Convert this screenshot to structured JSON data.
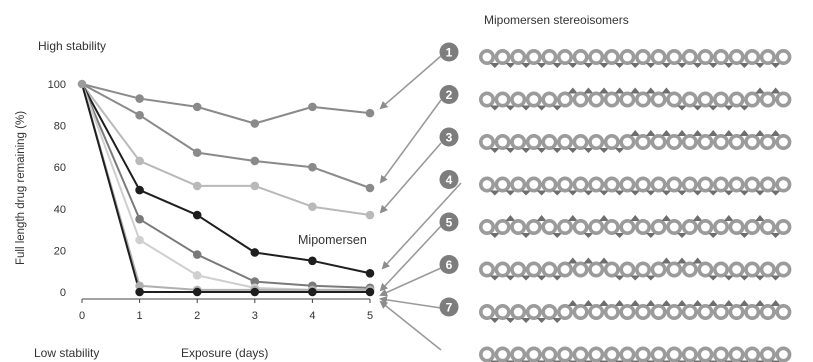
{
  "chart_data": {
    "type": "line",
    "title": "",
    "xlabel": "Exposure (days)",
    "ylabel": "Full length drug remaining (%)",
    "xlim": [
      0,
      5
    ],
    "ylim": [
      0,
      100
    ],
    "x_ticks": [
      "0",
      "1",
      "2",
      "3",
      "4",
      "5"
    ],
    "y_ticks": [
      "0",
      "20",
      "40",
      "60",
      "80",
      "100"
    ],
    "grid": false,
    "legend": "none",
    "annotations": {
      "top": "High stability",
      "bottom": "Low stability",
      "highlight": "Mipomersen"
    },
    "x": [
      0,
      1,
      2,
      3,
      4,
      5
    ],
    "series": [
      {
        "values": [
          100,
          93,
          89,
          81,
          89,
          86
        ],
        "color": "#8a8a8a"
      },
      {
        "values": [
          100,
          85,
          67,
          63,
          60,
          50
        ],
        "color": "#8a8a8a"
      },
      {
        "values": [
          100,
          63,
          51,
          51,
          41,
          37
        ],
        "color": "#b9b9b9"
      },
      {
        "name": "Mipomersen",
        "values": [
          100,
          49,
          37,
          19,
          15,
          9
        ],
        "color": "#1e1e1e"
      },
      {
        "values": [
          100,
          35,
          18,
          5,
          3,
          2
        ],
        "color": "#7a7a7a"
      },
      {
        "values": [
          100,
          25,
          8,
          2,
          1,
          1
        ],
        "color": "#cfcfcf"
      },
      {
        "values": [
          100,
          3,
          1,
          1,
          1,
          1
        ],
        "color": "#b0b0b0"
      },
      {
        "values": [
          100,
          0,
          0,
          0,
          0,
          0
        ],
        "color": "#1e1e1e"
      }
    ]
  },
  "stereoisomers": {
    "title": "Mipomersen stereoisomers",
    "items": [
      {
        "label": "1"
      },
      {
        "label": "2"
      },
      {
        "label": "3"
      },
      {
        "label": "4"
      },
      {
        "label": "5"
      },
      {
        "label": "6"
      },
      {
        "label": "7"
      }
    ],
    "beads_per_row": 20,
    "bead_color": "#9b9b9b",
    "marker_color": "#6e6e6e"
  }
}
